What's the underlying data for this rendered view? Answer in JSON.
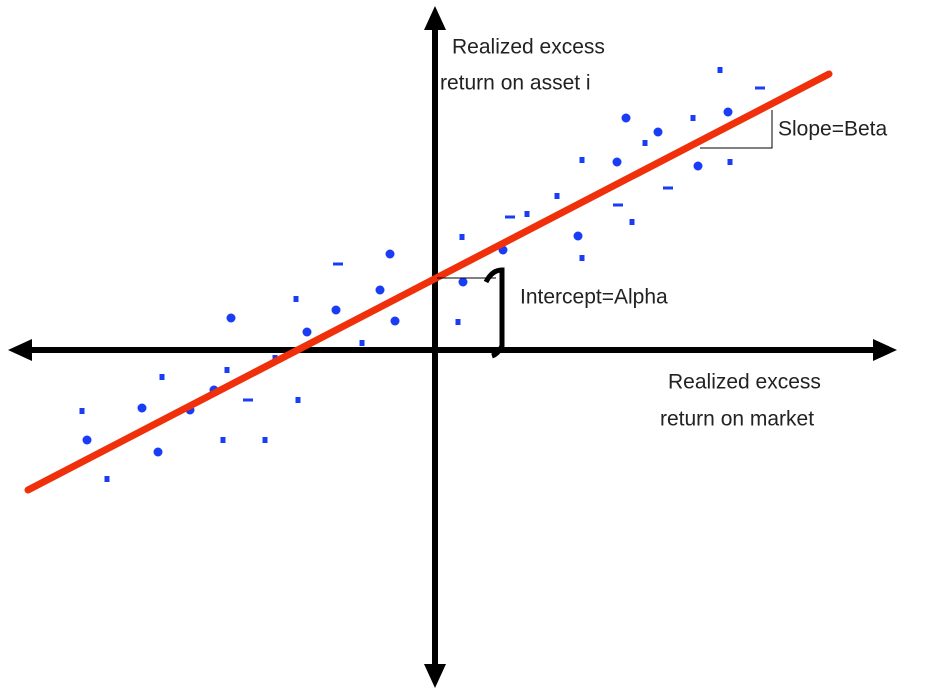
{
  "y_axis_label": [
    "Realized excess",
    "return on asset i"
  ],
  "x_axis_label": [
    "Realized excess",
    "return on market"
  ],
  "slope_label": "Slope=Beta",
  "intercept_label": "Intercept=Alpha"
}
